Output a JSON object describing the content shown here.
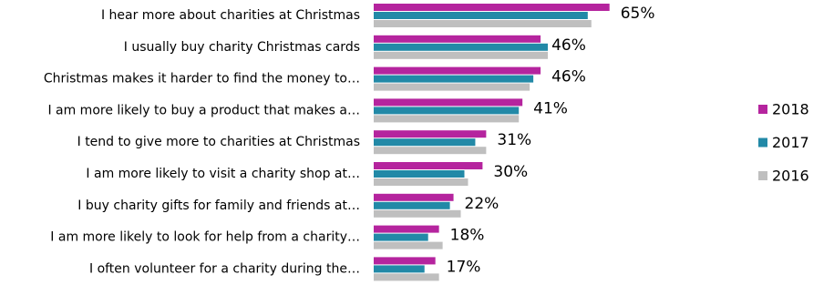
{
  "chart_data": {
    "type": "bar",
    "orientation": "horizontal",
    "categories": [
      "I hear more about charities at Christmas",
      "I usually buy charity Christmas cards",
      "Christmas makes it harder to find the money to…",
      "I am more likely to buy a product that makes a…",
      "I tend to give more to charities at Christmas",
      "I am more likely to visit a charity shop at…",
      "I buy charity gifts for family and friends at…",
      "I am more likely to look for help from a charity…",
      "I often volunteer for a charity during the…"
    ],
    "series": [
      {
        "name": "2018",
        "color": "#b5249e",
        "values": [
          65,
          46,
          46,
          41,
          31,
          30,
          22,
          18,
          17
        ],
        "value_labels": [
          "65%",
          "46%",
          "46%",
          "41%",
          "31%",
          "30%",
          "22%",
          "18%",
          "17%"
        ]
      },
      {
        "name": "2017",
        "color": "#2289a7",
        "values": [
          59,
          48,
          44,
          40,
          28,
          25,
          21,
          15,
          14
        ]
      },
      {
        "name": "2016",
        "color": "#bfbfbf",
        "values": [
          60,
          48,
          43,
          40,
          31,
          26,
          24,
          19,
          18
        ]
      }
    ],
    "legend": "right"
  }
}
